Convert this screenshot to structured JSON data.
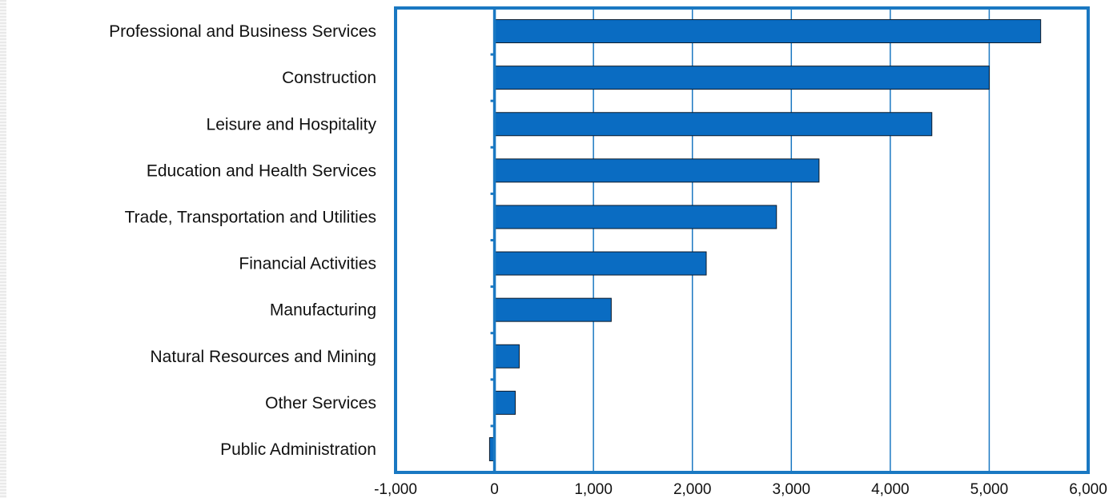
{
  "chart_data": {
    "type": "bar",
    "orientation": "horizontal",
    "categories": [
      "Professional and Business Services",
      "Construction",
      "Leisure and Hospitality",
      "Education and Health Services",
      "Trade, Transportation and Utilities",
      "Financial Activities",
      "Manufacturing",
      "Natural Resources and Mining",
      "Other Services",
      "Public Administration"
    ],
    "values": [
      5520,
      5000,
      4420,
      3280,
      2850,
      2140,
      1180,
      250,
      210,
      -50
    ],
    "x_ticks": [
      "-1,000",
      "0",
      "1,000",
      "2,000",
      "3,000",
      "4,000",
      "5,000",
      "6,000"
    ],
    "xlim": [
      -1000,
      6000
    ],
    "grid": "vertical",
    "title": "",
    "xlabel": "",
    "ylabel": "",
    "colors": {
      "bar": "#0a6cc2",
      "bar_edge": "#0c1a2a",
      "frame": "#1a78c2",
      "grid": "#1a78c2"
    }
  }
}
